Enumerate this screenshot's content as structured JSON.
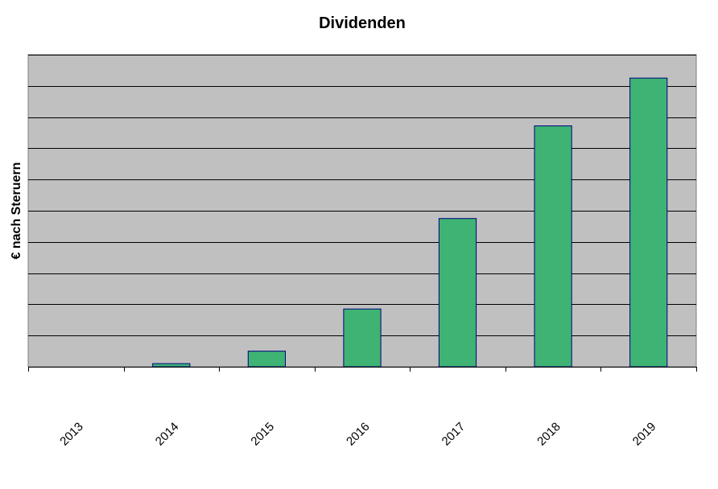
{
  "chart_data": {
    "type": "bar",
    "title": "Dividenden",
    "xlabel": "",
    "ylabel": "€ nach Steruern",
    "categories": [
      "2013",
      "2014",
      "2015",
      "2016",
      "2017",
      "2018",
      "2019"
    ],
    "values": [
      0,
      0.1,
      0.5,
      1.85,
      4.75,
      7.72,
      9.25
    ],
    "ylim": [
      0,
      10
    ],
    "y_tick_labels_shown": false,
    "grid": true,
    "legend": "none",
    "colors": {
      "bar_fill": "#3eb373",
      "bar_stroke": "#000080",
      "plot_background": "#c0c0c0",
      "gridline": "#000000",
      "axis": "#000000"
    }
  }
}
